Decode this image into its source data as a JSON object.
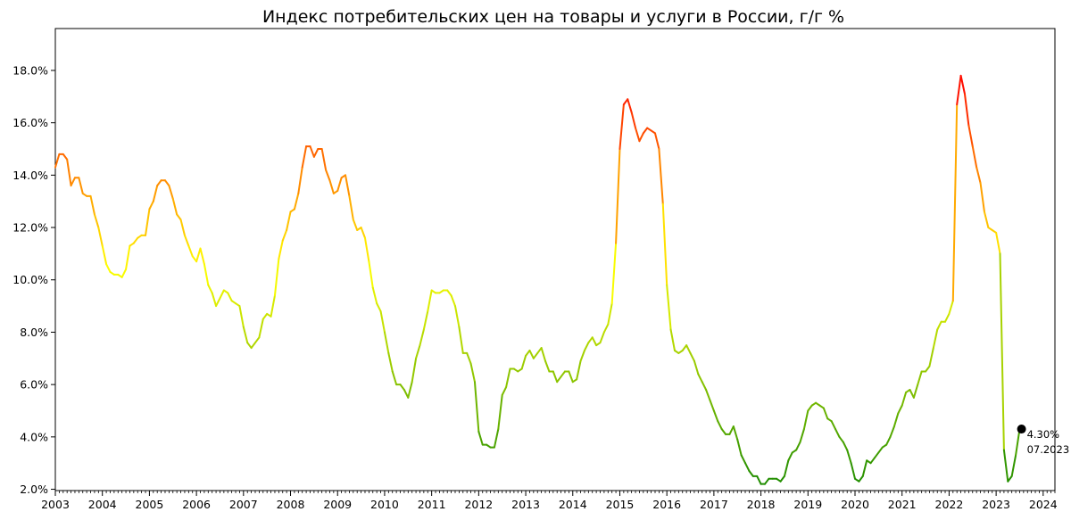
{
  "chart_data": {
    "type": "line",
    "title": "Индекс потребительских цен на товары и услуги в России, г/г %",
    "xlabel": "",
    "ylabel": "",
    "xlim": [
      2003.0,
      2024.25
    ],
    "ylim": [
      1.95,
      19.6
    ],
    "grid": false,
    "legend": "none",
    "color_scale": {
      "low_color": "#1e8c00",
      "mid_color": "#ffff00",
      "high_color": "#ff0000",
      "low_value": 2.2,
      "mid_value": 10.5,
      "high_value": 17.8
    },
    "x_ticks": [
      "2003",
      "2004",
      "2005",
      "2006",
      "2007",
      "2008",
      "2009",
      "2010",
      "2011",
      "2012",
      "2013",
      "2014",
      "2015",
      "2016",
      "2017",
      "2018",
      "2019",
      "2020",
      "2021",
      "2022",
      "2023",
      "2024"
    ],
    "y_ticks": [
      "2.0%",
      "4.0%",
      "6.0%",
      "8.0%",
      "10.0%",
      "12.0%",
      "14.0%",
      "16.0%",
      "18.0%"
    ],
    "y_tick_values": [
      2,
      4,
      6,
      8,
      10,
      12,
      14,
      16,
      18
    ],
    "series": [
      {
        "start": "2003-01",
        "values": [
          14.3,
          14.8,
          14.8,
          14.6,
          13.6,
          13.9,
          13.9,
          13.3,
          13.2,
          13.2,
          12.5,
          12.0,
          11.3,
          10.6,
          10.3,
          10.2,
          10.2,
          10.1,
          10.4,
          11.3,
          11.4,
          11.6,
          11.7,
          11.7,
          12.7,
          13.0,
          13.6,
          13.8,
          13.8,
          13.6,
          13.1,
          12.5,
          12.3,
          11.7,
          11.3,
          10.9,
          10.7,
          11.2,
          10.6,
          9.8,
          9.5,
          9.0,
          9.3,
          9.6,
          9.5,
          9.2,
          9.1,
          9.0,
          8.2,
          7.6,
          7.4,
          7.6,
          7.8,
          8.5,
          8.7,
          8.6,
          9.4,
          10.8,
          11.5,
          11.9,
          12.6,
          12.7,
          13.3,
          14.3,
          15.1,
          15.1,
          14.7,
          15.0,
          15.0,
          14.2,
          13.8,
          13.3,
          13.4,
          13.9,
          14.0,
          13.2,
          12.3,
          11.9,
          12.0,
          11.6,
          10.7,
          9.7,
          9.1,
          8.8,
          8.0,
          7.2,
          6.5,
          6.0,
          6.0,
          5.8,
          5.5,
          6.1,
          7.0,
          7.5,
          8.1,
          8.8,
          9.6,
          9.5,
          9.5,
          9.6,
          9.6,
          9.4,
          9.0,
          8.2,
          7.2,
          7.2,
          6.8,
          6.1,
          4.2,
          3.7,
          3.7,
          3.6,
          3.6,
          4.3,
          5.6,
          5.9,
          6.6,
          6.6,
          6.5,
          6.6,
          7.1,
          7.3,
          7.0,
          7.2,
          7.4,
          6.9,
          6.5,
          6.5,
          6.1,
          6.3,
          6.5,
          6.5,
          6.1,
          6.2,
          6.9,
          7.3,
          7.6,
          7.8,
          7.5,
          7.6,
          8.0,
          8.3,
          9.1,
          11.4,
          15.0,
          16.7,
          16.9,
          16.4,
          15.8,
          15.3,
          15.6,
          15.8,
          15.7,
          15.6,
          15.0,
          12.9,
          9.8,
          8.1,
          7.3,
          7.2,
          7.3,
          7.5,
          7.2,
          6.9,
          6.4,
          6.1,
          5.8,
          5.4,
          5.0,
          4.6,
          4.3,
          4.1,
          4.1,
          4.4,
          3.9,
          3.3,
          3.0,
          2.7,
          2.5,
          2.5,
          2.2,
          2.2,
          2.4,
          2.4,
          2.4,
          2.3,
          2.5,
          3.1,
          3.4,
          3.5,
          3.8,
          4.3,
          5.0,
          5.2,
          5.3,
          5.2,
          5.1,
          4.7,
          4.6,
          4.3,
          4.0,
          3.8,
          3.5,
          3.0,
          2.4,
          2.3,
          2.5,
          3.1,
          3.0,
          3.2,
          3.4,
          3.6,
          3.7,
          4.0,
          4.4,
          4.9,
          5.2,
          5.7,
          5.8,
          5.5,
          6.0,
          6.5,
          6.5,
          6.7,
          7.4,
          8.1,
          8.4,
          8.4,
          8.7,
          9.2,
          16.7,
          17.8,
          17.1,
          15.9,
          15.1,
          14.3,
          13.7,
          12.6,
          12.0,
          11.9,
          11.8,
          11.0,
          3.5,
          2.3,
          2.5,
          3.3,
          4.3
        ]
      }
    ],
    "annotation": {
      "value_label": "4.30%",
      "date_label": "07.2023",
      "marker_x": 2023.54,
      "marker_y": 4.3
    }
  }
}
